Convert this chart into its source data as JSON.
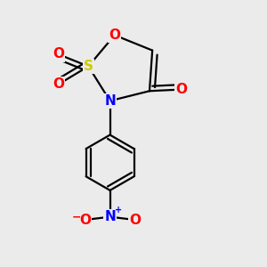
{
  "background_color": "#ebebeb",
  "atom_colors": {
    "C": "#000000",
    "O": "#ff0000",
    "N": "#0000ff",
    "S": "#cccc00"
  },
  "bond_color": "#000000",
  "bond_width": 1.6,
  "font_size_atom": 11
}
